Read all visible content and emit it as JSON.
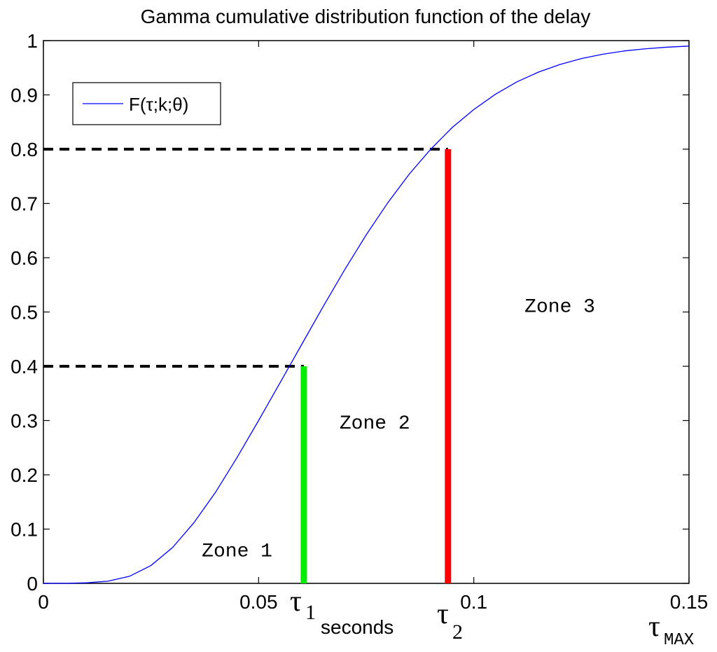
{
  "chart_data": {
    "type": "line",
    "title": "Gamma cumulative distribution function of the delay",
    "xlim": [
      0,
      0.15
    ],
    "ylim": [
      0,
      1
    ],
    "x_ticks": [
      0,
      0.05,
      0.1,
      0.15
    ],
    "x_tick_labels": [
      "0",
      "0.05",
      "0.1",
      "0.15"
    ],
    "y_ticks": [
      0,
      0.1,
      0.2,
      0.3,
      0.4,
      0.5,
      0.6,
      0.7,
      0.8,
      0.9,
      1
    ],
    "y_tick_labels": [
      "0",
      "0.1",
      "0.2",
      "0.3",
      "0.4",
      "0.5",
      "0.6",
      "0.7",
      "0.8",
      "0.9",
      "1"
    ],
    "grid": false,
    "legend_position": "top-left",
    "series": [
      {
        "name": "F(τ;k;θ)",
        "color": "#0000ff",
        "x": [
          0,
          0.005,
          0.01,
          0.015,
          0.02,
          0.025,
          0.03,
          0.035,
          0.04,
          0.045,
          0.05,
          0.055,
          0.06,
          0.065,
          0.07,
          0.075,
          0.08,
          0.085,
          0.09,
          0.095,
          0.1,
          0.105,
          0.11,
          0.115,
          0.12,
          0.125,
          0.13,
          0.135,
          0.14,
          0.145,
          0.15
        ],
        "y": [
          0,
          0,
          0.001,
          0.004,
          0.013,
          0.033,
          0.066,
          0.112,
          0.168,
          0.232,
          0.3,
          0.37,
          0.44,
          0.51,
          0.578,
          0.642,
          0.701,
          0.754,
          0.8,
          0.84,
          0.873,
          0.901,
          0.924,
          0.942,
          0.956,
          0.967,
          0.975,
          0.981,
          0.985,
          0.988,
          0.99
        ]
      }
    ],
    "markers": [
      {
        "x": 0.0605,
        "y_top": 0.4,
        "color": "#00ee00"
      },
      {
        "x": 0.094,
        "y_top": 0.8,
        "color": "#ff0000"
      }
    ],
    "dashed_levels": [
      {
        "y": 0.4,
        "x_end": 0.0605
      },
      {
        "y": 0.8,
        "x_end": 0.094
      }
    ],
    "annotations": [
      {
        "text": "Zone 1",
        "x": 0.045,
        "y": 0.05
      },
      {
        "text": "Zone 2",
        "x": 0.077,
        "y": 0.285
      },
      {
        "text": "Zone 3",
        "x": 0.12,
        "y": 0.5
      }
    ],
    "tau_labels": {
      "tau1": "τ",
      "tau1_sub": "1",
      "tau1_extra": "seconds",
      "tau2": "τ",
      "tau2_sub": "2",
      "taumax": "τ",
      "taumax_sub": "MAX"
    }
  }
}
